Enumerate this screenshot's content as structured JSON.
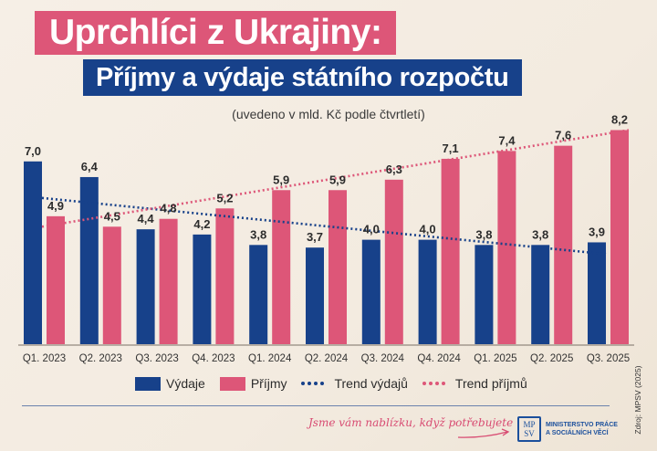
{
  "header": {
    "title": "Uprchlíci z Ukrajiny:",
    "subtitle": "Příjmy a výdaje státního rozpočtu",
    "unit_note": "(uvedeno v mld. Kč podle čtvrtletí)"
  },
  "colors": {
    "vydaje": "#17418a",
    "prijmy": "#dd5678",
    "title_bg": "#dd5678",
    "subtitle_bg": "#17418a"
  },
  "chart_data": {
    "type": "bar",
    "title": "Uprchlíci z Ukrajiny: Příjmy a výdaje státního rozpočtu",
    "subtitle": "(uvedeno v mld. Kč podle čtvrtletí)",
    "xlabel": "",
    "ylabel": "",
    "ylim": [
      0,
      8.2
    ],
    "grid": false,
    "legend_position": "bottom",
    "categories": [
      "Q1. 2023",
      "Q2. 2023",
      "Q3. 2023",
      "Q4. 2023",
      "Q1. 2024",
      "Q2. 2024",
      "Q3. 2024",
      "Q4. 2024",
      "Q1. 2025",
      "Q2. 2025",
      "Q3. 2025"
    ],
    "series": [
      {
        "name": "Výdaje",
        "color": "#17418a",
        "values": [
          7.0,
          6.4,
          4.4,
          4.2,
          3.8,
          3.7,
          4.0,
          4.0,
          3.8,
          3.8,
          3.9
        ],
        "labels": [
          "7,0",
          "6,4",
          "4,4",
          "4,2",
          "3,8",
          "3,7",
          "4,0",
          "4,0",
          "3,8",
          "3,8",
          "3,9"
        ]
      },
      {
        "name": "Příjmy",
        "color": "#dd5678",
        "values": [
          4.9,
          4.5,
          4.8,
          5.2,
          5.9,
          5.9,
          6.3,
          7.1,
          7.4,
          7.6,
          8.2
        ],
        "labels": [
          "4,9",
          "4,5",
          "4,8",
          "5,2",
          "5,9",
          "5,9",
          "6,3",
          "7,1",
          "7,4",
          "7,6",
          "8,2"
        ]
      }
    ],
    "trends": [
      {
        "name": "Trend výdajů",
        "color": "#17418a",
        "start": 5.6,
        "end": 3.45
      },
      {
        "name": "Trend příjmů",
        "color": "#dd5678",
        "start": 4.5,
        "end": 8.2
      }
    ]
  },
  "legend": {
    "items": [
      {
        "label": "Výdaje",
        "kind": "swatch",
        "color": "#17418a"
      },
      {
        "label": "Příjmy",
        "kind": "swatch",
        "color": "#dd5678"
      },
      {
        "label": "Trend výdajů",
        "kind": "dots",
        "color": "#17418a"
      },
      {
        "label": "Trend příjmů",
        "kind": "dots",
        "color": "#dd5678"
      }
    ]
  },
  "footer": {
    "slogan": "Jsme vám nablízku, když potřebujete",
    "logo_letters_top": "MP",
    "logo_letters_bottom": "SV",
    "logo_line1": "MINISTERSTVO PRÁCE",
    "logo_line2": "A SOCIÁLNÍCH VĚCÍ",
    "source": "Zdroj: MPSV (2025)"
  }
}
